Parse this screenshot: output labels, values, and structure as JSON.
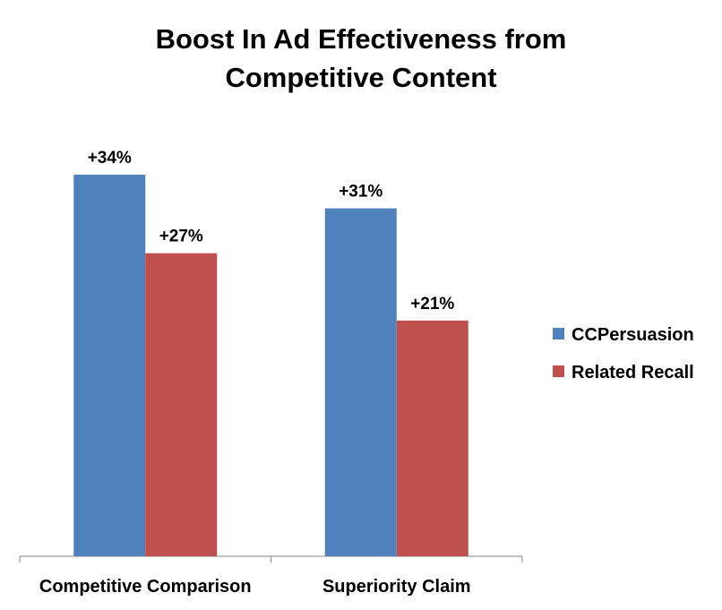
{
  "chart_data": {
    "type": "bar",
    "title": "Boost In Ad Effectiveness from Competitive Content",
    "title_lines": [
      "Boost In Ad Effectiveness from",
      "Competitive Content"
    ],
    "categories": [
      "Competitive Comparison",
      "Superiority Claim"
    ],
    "series": [
      {
        "name": "CCPersuasion",
        "values": [
          34,
          31
        ],
        "labels": [
          "+34%",
          "+31%"
        ],
        "color": "#4F81BD"
      },
      {
        "name": "Related Recall",
        "values": [
          27,
          21
        ],
        "labels": [
          "+27%",
          "+21%"
        ],
        "color": "#C0504D"
      }
    ],
    "ylim": [
      0,
      40
    ],
    "grid": false,
    "legend": "right",
    "xlabel": "",
    "ylabel": ""
  }
}
